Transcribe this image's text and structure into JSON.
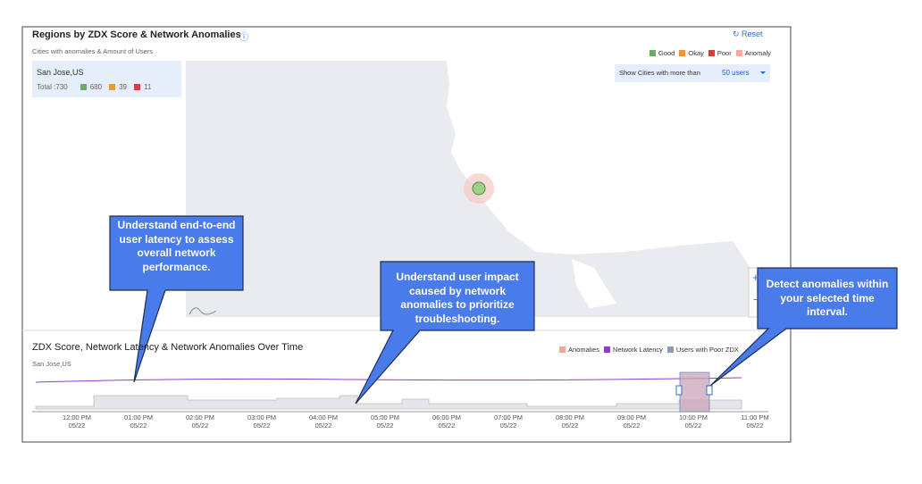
{
  "map_panel": {
    "title": "Regions by ZDX Score & Network Anomalies",
    "subtitle": "Cities with anomalies & Amount of Users",
    "reset": "Reset",
    "legend": [
      {
        "label": "Good",
        "color": "#6aaa64"
      },
      {
        "label": "Okay",
        "color": "#e8973a"
      },
      {
        "label": "Poor",
        "color": "#d0413c"
      },
      {
        "label": "Anomaly",
        "color": "#f3a9a0"
      }
    ],
    "city": {
      "name": "San Jose,US",
      "total": "Total :730",
      "counts": [
        "680",
        "39",
        "11"
      ]
    },
    "filter": {
      "label": "Show Cities with more than",
      "value": "50 users"
    }
  },
  "time_panel": {
    "title": "ZDX Score, Network Latency & Network Anomalies Over Time",
    "subtitle": "San Jose,US",
    "legend": [
      {
        "label": "Anomalies",
        "color": "#f0a99c"
      },
      {
        "label": "Network Latency",
        "color": "#8a3fd1"
      },
      {
        "label": "Users with Poor ZDX",
        "color": "#8f9bb3"
      }
    ],
    "ticks": [
      {
        "time": "12:00 PM",
        "date": "05/22"
      },
      {
        "time": "01:00 PM",
        "date": "05/22"
      },
      {
        "time": "02:00 PM",
        "date": "05/22"
      },
      {
        "time": "03:00 PM",
        "date": "05/22"
      },
      {
        "time": "04:00 PM",
        "date": "05/22"
      },
      {
        "time": "05:00 PM",
        "date": "05/22"
      },
      {
        "time": "06:00 PM",
        "date": "05/22"
      },
      {
        "time": "07:00 PM",
        "date": "05/22"
      },
      {
        "time": "08:00 PM",
        "date": "05/22"
      },
      {
        "time": "09:00 PM",
        "date": "05/22"
      },
      {
        "time": "10:00 PM",
        "date": "05/22"
      },
      {
        "time": "11:00 PM",
        "date": "05/22"
      }
    ]
  },
  "callouts": [
    "Understand end-to-end user latency to assess overall network performance.",
    "Understand user impact caused by network anomalies to prioritize troubleshooting.",
    "Detect anomalies within your selected time interval."
  ]
}
